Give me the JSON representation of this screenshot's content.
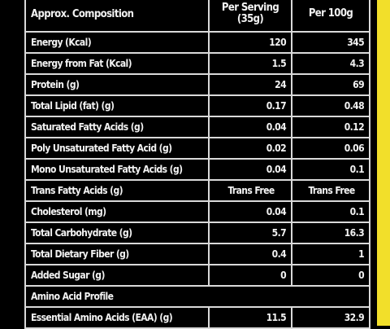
{
  "table": {
    "headers": {
      "composition": "Approx. Composition",
      "per_serving_line1": "Per Serving",
      "per_serving_line2": "(35g)",
      "per_100g": "Per 100g"
    },
    "rows": [
      {
        "label": "Energy (Kcal)",
        "serving": "120",
        "per100": "345"
      },
      {
        "label": "Energy from Fat (Kcal)",
        "serving": "1.5",
        "per100": "4.3"
      },
      {
        "label": "Protein (g)",
        "serving": "24",
        "per100": "69"
      },
      {
        "label": "Total Lipid (fat) (g)",
        "serving": "0.17",
        "per100": "0.48"
      },
      {
        "label": "Saturated Fatty Acids (g)",
        "serving": "0.04",
        "per100": "0.12"
      },
      {
        "label": "Poly Unsaturated Fatty Acid (g)",
        "serving": "0.02",
        "per100": "0.06"
      },
      {
        "label": "Mono Unsaturated Fatty Acids (g)",
        "serving": "0.04",
        "per100": "0.1"
      },
      {
        "label": "Trans Fatty Acids (g)",
        "serving": "Trans Free",
        "per100": "Trans Free"
      },
      {
        "label": "Cholesterol (mg)",
        "serving": "0.04",
        "per100": "0.1"
      },
      {
        "label": "Total Carbohydrate (g)",
        "serving": "5.7",
        "per100": "16.3"
      },
      {
        "label": "Total Dietary Fiber (g)",
        "serving": "0.4",
        "per100": "1"
      },
      {
        "label": "Added Sugar (g)",
        "serving": "0",
        "per100": "0"
      }
    ],
    "section_amino": "Amino Acid Profile",
    "amino_rows": [
      {
        "label": "Essential Amino Acids (EAA) (g)",
        "serving": "11.5",
        "per100": "32.9"
      }
    ]
  }
}
